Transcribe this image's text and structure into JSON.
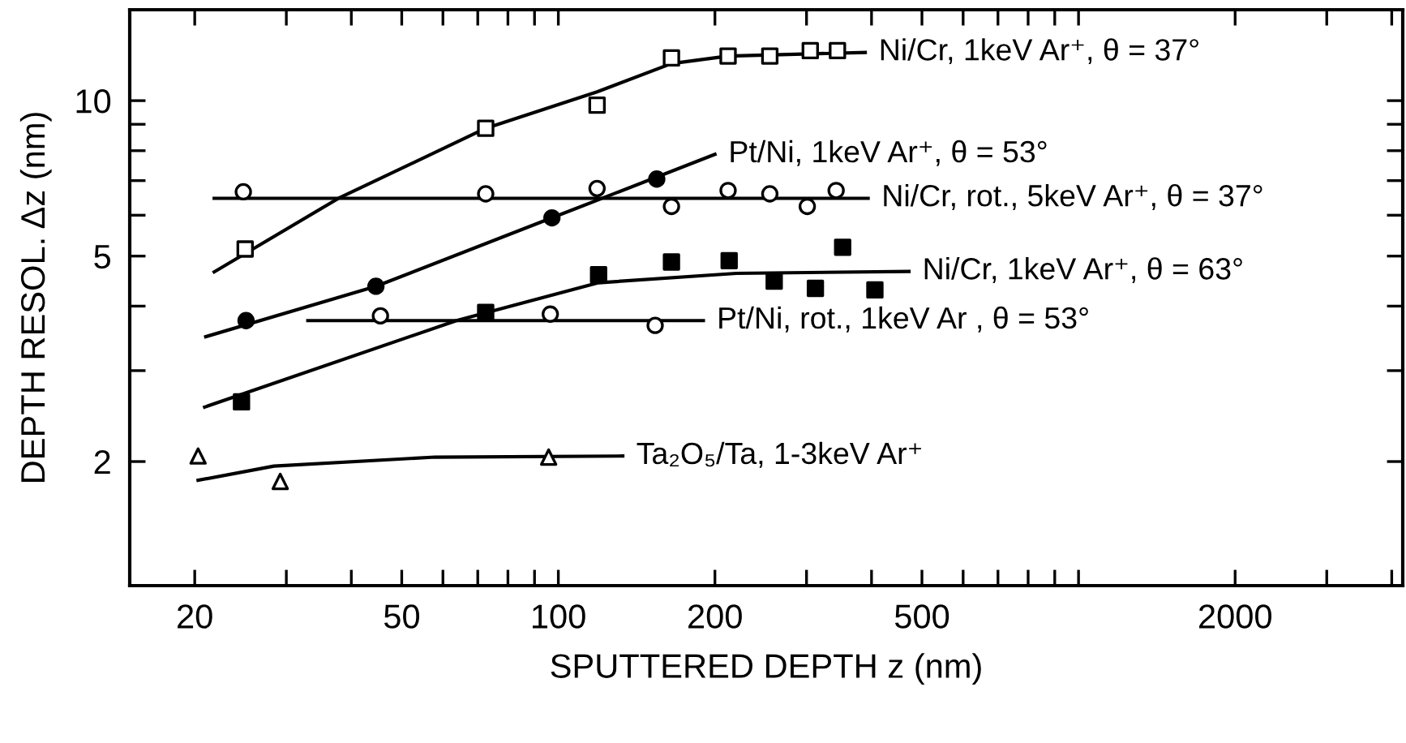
{
  "chart_data": {
    "type": "scatter",
    "xlabel": "SPUTTERED DEPTH z (nm)",
    "ylabel": "DEPTH RESOL. Δz (nm)",
    "log": "xy",
    "grid": false,
    "xlim": [
      15,
      4200
    ],
    "ylim": [
      1.15,
      15
    ],
    "xticks": [
      20,
      {
        "value": 30,
        "label": null
      },
      {
        "value": 40,
        "label": null
      },
      50,
      {
        "value": 60,
        "label": null
      },
      {
        "value": 70,
        "label": null
      },
      {
        "value": 80,
        "label": null
      },
      {
        "value": 90,
        "label": null
      },
      100,
      200,
      {
        "value": 300,
        "label": null
      },
      {
        "value": 400,
        "label": null
      },
      500,
      {
        "value": 600,
        "label": null
      },
      {
        "value": 700,
        "label": null
      },
      {
        "value": 800,
        "label": null
      },
      {
        "value": 900,
        "label": null
      },
      {
        "value": 1000,
        "label": null
      },
      2000,
      {
        "value": 3000,
        "label": null
      },
      {
        "value": 4000,
        "label": null
      }
    ],
    "yticks": [
      2,
      {
        "value": 3,
        "label": null
      },
      {
        "value": 4,
        "label": null
      },
      5,
      {
        "value": 6,
        "label": null
      },
      {
        "value": 7,
        "label": null
      },
      {
        "value": 8,
        "label": null
      },
      {
        "value": 9,
        "label": null
      },
      10
    ],
    "series": [
      {
        "marker": "square",
        "color": "#ffffff",
        "x": [
          25.0,
          72.5,
          118.7,
          165,
          212,
          255,
          305,
          344
        ],
        "values": [
          5.16,
          8.84,
          9.8,
          12.1,
          12.2,
          12.2,
          12.5,
          12.5
        ]
      },
      {
        "type": "line",
        "name": "Ni/Cr, 1keV Ar⁺, θ = 37°",
        "marker": "none",
        "color": "#000000",
        "x": [
          21.8,
          37.8,
          72.5,
          118.7,
          165,
          212,
          389
        ],
        "values": [
          4.66,
          6.47,
          8.84,
          10.4,
          11.8,
          12.2,
          12.4
        ]
      },
      {
        "marker": "circle",
        "color": "#ffffff",
        "x": [
          24.8,
          72.5,
          118.7,
          165,
          212,
          255,
          301,
          342
        ],
        "values": [
          6.66,
          6.6,
          6.76,
          6.24,
          6.7,
          6.6,
          6.24,
          6.7
        ]
      },
      {
        "type": "line",
        "name": "Ni/Cr, rot., 5keV Ar⁺, θ = 37°",
        "marker": "none",
        "color": "#000000",
        "x": [
          21.8,
          394
        ],
        "values": [
          6.47,
          6.47
        ]
      },
      {
        "marker": "circle",
        "color": "#000000",
        "x": [
          25.1,
          44.6,
          97.2,
          154.6
        ],
        "values": [
          3.75,
          4.37,
          5.93,
          7.05
        ]
      },
      {
        "type": "line",
        "name": "Pt/Ni, 1keV Ar⁺, θ = 53°",
        "marker": "none",
        "color": "#000000",
        "x": [
          21,
          44.6,
          97.2,
          200
        ],
        "values": [
          3.49,
          4.37,
          5.93,
          7.87
        ]
      },
      {
        "marker": "square",
        "color": "#000000",
        "x": [
          24.6,
          72.5,
          119.5,
          165,
          213,
          260,
          312,
          352,
          406
        ],
        "values": [
          2.61,
          3.89,
          4.6,
          4.87,
          4.9,
          4.47,
          4.33,
          5.2,
          4.3
        ]
      },
      {
        "type": "line",
        "name": "Ni/Cr, 1keV Ar⁺, θ = 63°",
        "marker": "none",
        "color": "#000000",
        "x": [
          20.9,
          63.7,
          119.5,
          220,
          472
        ],
        "values": [
          2.55,
          3.75,
          4.44,
          4.63,
          4.67
        ]
      },
      {
        "marker": "circle",
        "color": "#ffffff",
        "x": [
          45.5,
          96.5,
          153.5
        ],
        "values": [
          3.83,
          3.86,
          3.67
        ]
      },
      {
        "type": "line",
        "name": "Pt/Ni, rot., 1keV Ar , θ = 53°",
        "marker": "none",
        "color": "#000000",
        "x": [
          33,
          190
        ],
        "values": [
          3.75,
          3.75
        ]
      },
      {
        "marker": "triangle",
        "color": "#ffffff",
        "x": [
          20.3,
          29.2,
          95.8
        ],
        "values": [
          2.05,
          1.83,
          2.04
        ]
      },
      {
        "type": "line",
        "name": "Ta₂O₅/Ta, 1-3keV Ar⁺",
        "marker": "none",
        "color": "#000000",
        "x": [
          20.3,
          28.4,
          58,
          133
        ],
        "values": [
          1.84,
          1.96,
          2.04,
          2.05
        ]
      }
    ]
  }
}
